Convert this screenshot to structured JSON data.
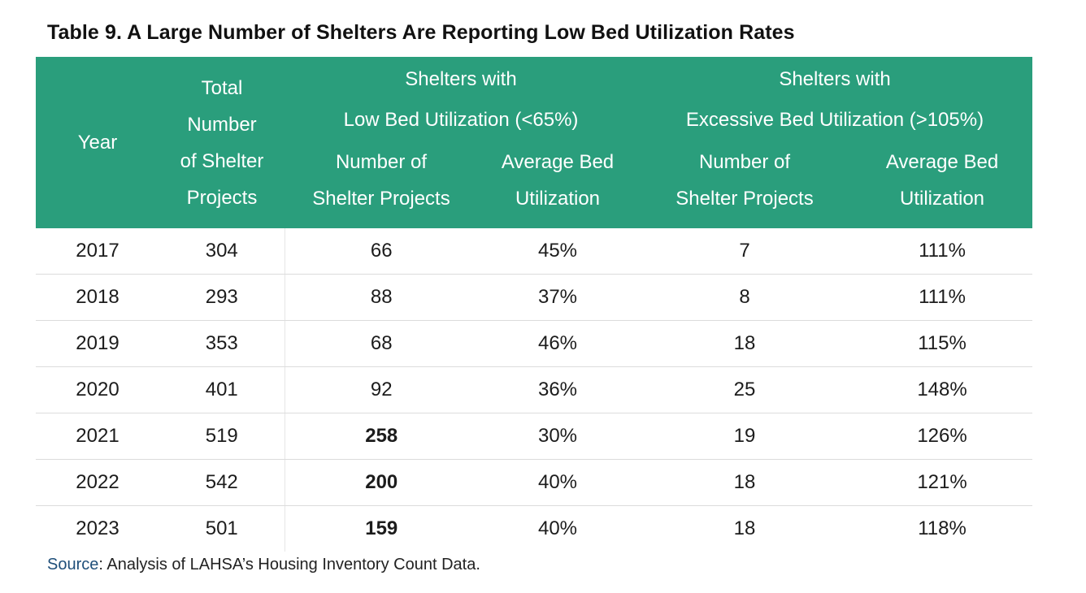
{
  "title": "Table 9. A Large Number of Shelters Are Reporting Low Bed Utilization Rates",
  "header": {
    "year": "Year",
    "total": [
      "Total",
      "Number",
      "of Shelter",
      "Projects"
    ],
    "low_group": [
      "Shelters with",
      "Low Bed Utilization (<65%)"
    ],
    "excessive_group": [
      "Shelters with",
      "Excessive Bed Utilization (>105%)"
    ],
    "num_projects": [
      "Number of",
      "Shelter Projects"
    ],
    "avg_util": [
      "Average Bed",
      "Utilization"
    ]
  },
  "rows": [
    {
      "year": "2017",
      "total": "304",
      "low_count": "66",
      "low_avg": "45%",
      "exc_count": "7",
      "exc_avg": "111%",
      "low_bold": false
    },
    {
      "year": "2018",
      "total": "293",
      "low_count": "88",
      "low_avg": "37%",
      "exc_count": "8",
      "exc_avg": "111%",
      "low_bold": false
    },
    {
      "year": "2019",
      "total": "353",
      "low_count": "68",
      "low_avg": "46%",
      "exc_count": "18",
      "exc_avg": "115%",
      "low_bold": false
    },
    {
      "year": "2020",
      "total": "401",
      "low_count": "92",
      "low_avg": "36%",
      "exc_count": "25",
      "exc_avg": "148%",
      "low_bold": false
    },
    {
      "year": "2021",
      "total": "519",
      "low_count": "258",
      "low_avg": "30%",
      "exc_count": "19",
      "exc_avg": "126%",
      "low_bold": true
    },
    {
      "year": "2022",
      "total": "542",
      "low_count": "200",
      "low_avg": "40%",
      "exc_count": "18",
      "exc_avg": "121%",
      "low_bold": true
    },
    {
      "year": "2023",
      "total": "501",
      "low_count": "159",
      "low_avg": "40%",
      "exc_count": "18",
      "exc_avg": "118%",
      "low_bold": true
    }
  ],
  "source": {
    "label": "Source",
    "text": ": Analysis of LAHSA’s Housing Inventory Count Data."
  },
  "colors": {
    "header_bg": "#2a9e7c",
    "header_text": "#ffffff",
    "source_label": "#1f4f7a",
    "row_divider": "#dcdcdc"
  }
}
